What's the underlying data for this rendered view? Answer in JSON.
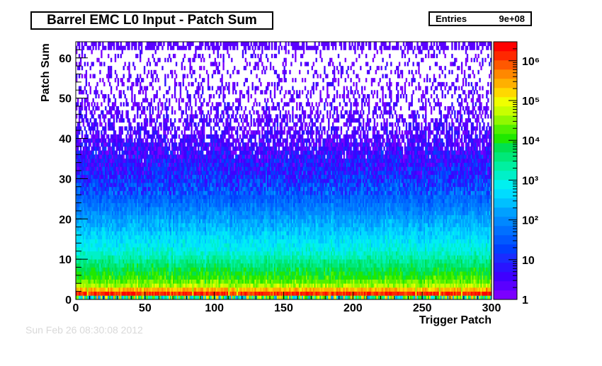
{
  "chart_data": {
    "type": "heatmap",
    "title": "Barrel EMC L0 Input - Patch Sum",
    "xlabel": "Trigger Patch",
    "ylabel": "Patch Sum",
    "xlim": [
      0,
      300
    ],
    "ylim": [
      0,
      64
    ],
    "x_ticks": [
      0,
      50,
      100,
      150,
      200,
      250,
      300
    ],
    "y_ticks": [
      0,
      10,
      20,
      30,
      40,
      50,
      60
    ],
    "z_scale": "log",
    "zlim": [
      1,
      3000000
    ],
    "z_tick_labels": [
      "1",
      "10",
      "10²",
      "10³",
      "10⁴",
      "10⁵",
      "10⁶"
    ],
    "z_tick_values": [
      1,
      10,
      100,
      1000,
      10000,
      100000,
      1000000
    ],
    "stats": {
      "label": "Entries",
      "value": "9e+08"
    },
    "palette": [
      "#7b00ff",
      "#5a00ff",
      "#3f00ff",
      "#2a14ff",
      "#1a2cff",
      "#0040ff",
      "#0059ff",
      "#0070ff",
      "#0088ff",
      "#00a0ff",
      "#00c0ff",
      "#00dcff",
      "#00f0f0",
      "#00f0c8",
      "#00f0a0",
      "#00e878",
      "#00e050",
      "#20e800",
      "#50f000",
      "#90f800",
      "#c8ff00",
      "#f0ff00",
      "#ffd800",
      "#ffb000",
      "#ff8800",
      "#ff5800",
      "#ff2800",
      "#ff0000"
    ],
    "profile_description_rows": [
      {
        "patch_sum": 1,
        "approx_count": 2000000
      },
      {
        "patch_sum": 2,
        "approx_count": 1000000
      },
      {
        "patch_sum": 3,
        "approx_count": 60000
      },
      {
        "patch_sum": 5,
        "approx_count": 15000
      },
      {
        "patch_sum": 8,
        "approx_count": 5000
      },
      {
        "patch_sum": 12,
        "approx_count": 1000
      },
      {
        "patch_sum": 16,
        "approx_count": 400
      },
      {
        "patch_sum": 20,
        "approx_count": 150
      },
      {
        "patch_sum": 25,
        "approx_count": 40
      },
      {
        "patch_sum": 30,
        "approx_count": 12
      },
      {
        "patch_sum": 35,
        "approx_count": 5
      },
      {
        "patch_sum": 40,
        "approx_count": 2
      },
      {
        "patch_sum": 50,
        "approx_count": 1
      },
      {
        "patch_sum": 62,
        "approx_count": 1
      }
    ]
  },
  "footer": {
    "date_text": "Sun Feb 26 08:30:08 2012"
  }
}
